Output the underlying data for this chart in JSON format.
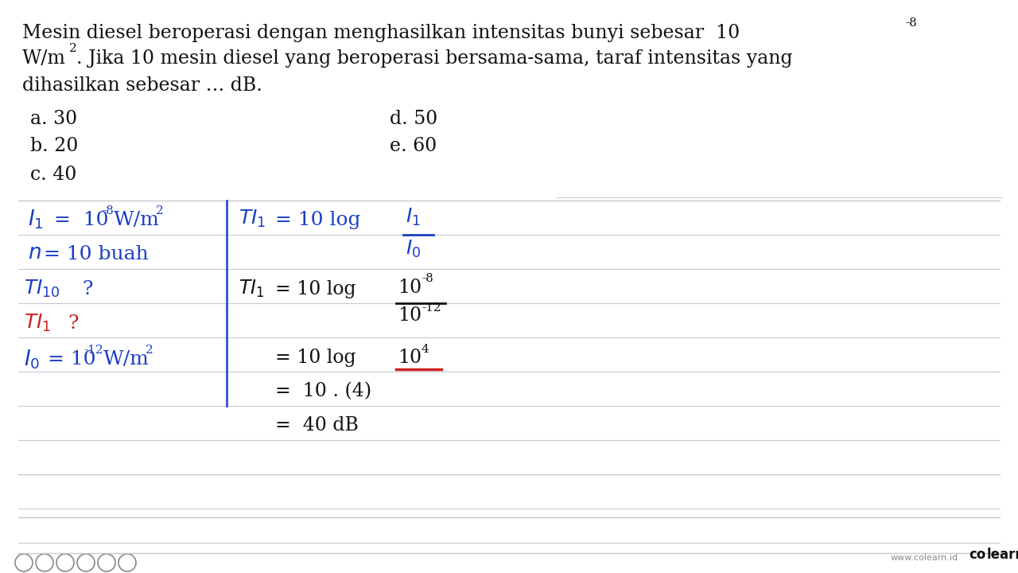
{
  "bg_color": "#f5f5f7",
  "line_color": "#c8c8d0",
  "blue_color": "#1a3fc4",
  "red_color": "#cc2020",
  "black_color": "#111111",
  "gray_color": "#888888",
  "white": "#ffffff",
  "question_line1": "Mesin diesel beroperasi dengan menghasilkan intensitas bunyi sebesar 10",
  "question_sup1": "-8",
  "question_line2a": "W/m",
  "question_sup2": "2",
  "question_line2b": ". Jika 10 mesin diesel yang beroperasi bersama-sama, taraf intensitas yang",
  "question_line3": "dihasilkan sebesar … dB.",
  "opt_a": "a. 30",
  "opt_b": "b. 20",
  "opt_c": "c. 40",
  "opt_d": "d. 50",
  "opt_e": "e. 60"
}
